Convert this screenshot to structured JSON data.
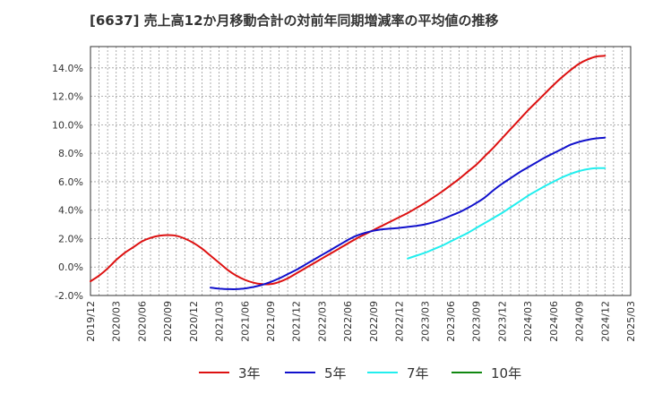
{
  "title": "[6637]  売上高12か月移動合計の対前年同期増減率の平均値の推移",
  "chart_data": {
    "type": "line",
    "title": "[6637]  売上高12か月移動合計の対前年同期増減率の平均値の推移",
    "xlabel": "",
    "ylabel": "",
    "x_ticks": [
      "2019/12",
      "2020/03",
      "2020/06",
      "2020/09",
      "2020/12",
      "2021/03",
      "2021/06",
      "2021/09",
      "2021/12",
      "2022/03",
      "2022/06",
      "2022/09",
      "2022/12",
      "2023/03",
      "2023/06",
      "2023/09",
      "2023/12",
      "2024/03",
      "2024/06",
      "2024/09",
      "2024/12",
      "2025/03"
    ],
    "y_ticks": [
      "-2.0%",
      "0.0%",
      "2.0%",
      "4.0%",
      "6.0%",
      "8.0%",
      "10.0%",
      "12.0%",
      "14.0%"
    ],
    "y_tick_values": [
      -2,
      0,
      2,
      4,
      6,
      8,
      10,
      12,
      14
    ],
    "ylim": [
      -2.0,
      15.5
    ],
    "grid": true,
    "legend_position": "bottom",
    "series": [
      {
        "name": "3年",
        "color": "#dd1111",
        "points": [
          [
            "2019/12",
            -1.0
          ],
          [
            "2020/01",
            -0.6
          ],
          [
            "2020/02",
            -0.1
          ],
          [
            "2020/03",
            0.5
          ],
          [
            "2020/04",
            1.0
          ],
          [
            "2020/05",
            1.4
          ],
          [
            "2020/06",
            1.8
          ],
          [
            "2020/07",
            2.05
          ],
          [
            "2020/08",
            2.2
          ],
          [
            "2020/09",
            2.25
          ],
          [
            "2020/10",
            2.2
          ],
          [
            "2020/11",
            2.0
          ],
          [
            "2020/12",
            1.7
          ],
          [
            "2021/01",
            1.3
          ],
          [
            "2021/02",
            0.8
          ],
          [
            "2021/03",
            0.3
          ],
          [
            "2021/04",
            -0.2
          ],
          [
            "2021/05",
            -0.6
          ],
          [
            "2021/06",
            -0.9
          ],
          [
            "2021/07",
            -1.1
          ],
          [
            "2021/08",
            -1.2
          ],
          [
            "2021/09",
            -1.2
          ],
          [
            "2021/10",
            -1.05
          ],
          [
            "2021/11",
            -0.8
          ],
          [
            "2021/12",
            -0.45
          ],
          [
            "2022/01",
            -0.1
          ],
          [
            "2022/02",
            0.25
          ],
          [
            "2022/03",
            0.6
          ],
          [
            "2022/04",
            0.95
          ],
          [
            "2022/05",
            1.3
          ],
          [
            "2022/06",
            1.65
          ],
          [
            "2022/07",
            2.0
          ],
          [
            "2022/08",
            2.3
          ],
          [
            "2022/09",
            2.6
          ],
          [
            "2022/10",
            2.9
          ],
          [
            "2022/11",
            3.2
          ],
          [
            "2022/12",
            3.5
          ],
          [
            "2023/01",
            3.8
          ],
          [
            "2023/02",
            4.15
          ],
          [
            "2023/03",
            4.5
          ],
          [
            "2023/04",
            4.9
          ],
          [
            "2023/05",
            5.3
          ],
          [
            "2023/06",
            5.75
          ],
          [
            "2023/07",
            6.2
          ],
          [
            "2023/08",
            6.7
          ],
          [
            "2023/09",
            7.2
          ],
          [
            "2023/10",
            7.8
          ],
          [
            "2023/11",
            8.4
          ],
          [
            "2023/12",
            9.05
          ],
          [
            "2024/01",
            9.7
          ],
          [
            "2024/02",
            10.35
          ],
          [
            "2024/03",
            11.0
          ],
          [
            "2024/04",
            11.6
          ],
          [
            "2024/05",
            12.2
          ],
          [
            "2024/06",
            12.8
          ],
          [
            "2024/07",
            13.35
          ],
          [
            "2024/08",
            13.85
          ],
          [
            "2024/09",
            14.3
          ],
          [
            "2024/10",
            14.6
          ],
          [
            "2024/11",
            14.8
          ],
          [
            "2024/12",
            14.85
          ]
        ]
      },
      {
        "name": "5年",
        "color": "#1111cc",
        "points": [
          [
            "2021/02",
            -1.45
          ],
          [
            "2021/03",
            -1.52
          ],
          [
            "2021/04",
            -1.55
          ],
          [
            "2021/05",
            -1.55
          ],
          [
            "2021/06",
            -1.5
          ],
          [
            "2021/07",
            -1.4
          ],
          [
            "2021/08",
            -1.25
          ],
          [
            "2021/09",
            -1.05
          ],
          [
            "2021/10",
            -0.8
          ],
          [
            "2021/11",
            -0.5
          ],
          [
            "2021/12",
            -0.2
          ],
          [
            "2022/01",
            0.15
          ],
          [
            "2022/02",
            0.5
          ],
          [
            "2022/03",
            0.85
          ],
          [
            "2022/04",
            1.2
          ],
          [
            "2022/05",
            1.55
          ],
          [
            "2022/06",
            1.9
          ],
          [
            "2022/07",
            2.2
          ],
          [
            "2022/08",
            2.4
          ],
          [
            "2022/09",
            2.55
          ],
          [
            "2022/10",
            2.65
          ],
          [
            "2022/11",
            2.7
          ],
          [
            "2022/12",
            2.75
          ],
          [
            "2023/01",
            2.82
          ],
          [
            "2023/02",
            2.9
          ],
          [
            "2023/03",
            3.0
          ],
          [
            "2023/04",
            3.15
          ],
          [
            "2023/05",
            3.35
          ],
          [
            "2023/06",
            3.6
          ],
          [
            "2023/07",
            3.85
          ],
          [
            "2023/08",
            4.15
          ],
          [
            "2023/09",
            4.5
          ],
          [
            "2023/10",
            4.9
          ],
          [
            "2023/11",
            5.4
          ],
          [
            "2023/12",
            5.85
          ],
          [
            "2024/01",
            6.25
          ],
          [
            "2024/02",
            6.65
          ],
          [
            "2024/03",
            7.0
          ],
          [
            "2024/04",
            7.35
          ],
          [
            "2024/05",
            7.7
          ],
          [
            "2024/06",
            8.0
          ],
          [
            "2024/07",
            8.3
          ],
          [
            "2024/08",
            8.6
          ],
          [
            "2024/09",
            8.8
          ],
          [
            "2024/10",
            8.95
          ],
          [
            "2024/11",
            9.05
          ],
          [
            "2024/12",
            9.1
          ]
        ]
      },
      {
        "name": "7年",
        "color": "#22eeee",
        "points": [
          [
            "2023/01",
            0.6
          ],
          [
            "2023/02",
            0.8
          ],
          [
            "2023/03",
            1.0
          ],
          [
            "2023/04",
            1.25
          ],
          [
            "2023/05",
            1.5
          ],
          [
            "2023/06",
            1.8
          ],
          [
            "2023/07",
            2.1
          ],
          [
            "2023/08",
            2.4
          ],
          [
            "2023/09",
            2.75
          ],
          [
            "2023/10",
            3.1
          ],
          [
            "2023/11",
            3.45
          ],
          [
            "2023/12",
            3.8
          ],
          [
            "2024/01",
            4.2
          ],
          [
            "2024/02",
            4.6
          ],
          [
            "2024/03",
            5.0
          ],
          [
            "2024/04",
            5.35
          ],
          [
            "2024/05",
            5.7
          ],
          [
            "2024/06",
            6.0
          ],
          [
            "2024/07",
            6.3
          ],
          [
            "2024/08",
            6.55
          ],
          [
            "2024/09",
            6.75
          ],
          [
            "2024/10",
            6.88
          ],
          [
            "2024/11",
            6.95
          ],
          [
            "2024/12",
            6.95
          ]
        ]
      },
      {
        "name": "10年",
        "color": "#118811",
        "points": []
      }
    ]
  }
}
